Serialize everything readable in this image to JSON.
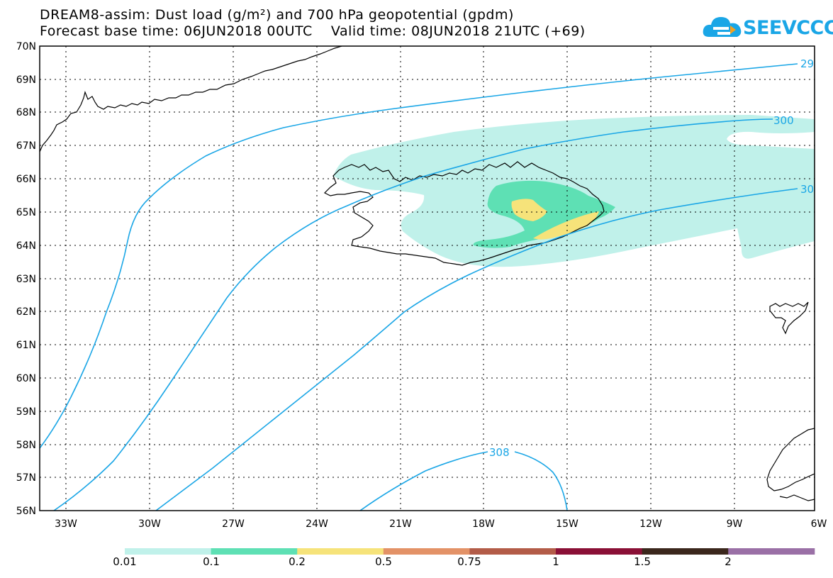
{
  "header": {
    "title_line1": "DREAM8-assim: Dust load (g/m²) and 700 hPa geopotential (gpdm)",
    "title_line2": "Forecast base time: 06JUN2018 00UTC    Valid time: 08JUN2018 21UTC (+69)"
  },
  "logo": {
    "text": "SEEVCCC",
    "icon": "cloud-icon",
    "color": "#1aa6e6"
  },
  "map": {
    "lat_labels": [
      "70N",
      "69N",
      "68N",
      "67N",
      "66N",
      "65N",
      "64N",
      "63N",
      "62N",
      "61N",
      "60N",
      "59N",
      "58N",
      "57N",
      "56N"
    ],
    "lon_labels": [
      "33W",
      "30W",
      "27W",
      "24W",
      "21W",
      "18W",
      "15W",
      "12W",
      "9W",
      "6W"
    ],
    "contour_color": "#1aa6e6",
    "contour_labels": [
      "29",
      "300",
      "30",
      "308"
    ]
  },
  "legend": {
    "labels": [
      "0.01",
      "0.1",
      "0.2",
      "0.5",
      "0.75",
      "1",
      "1.5",
      "2"
    ],
    "colors": [
      "#c0f1ea",
      "#5ee0b4",
      "#f6e37a",
      "#e39267",
      "#b35c48",
      "#8a1036",
      "#3b271c",
      "#9a70a6"
    ]
  }
}
